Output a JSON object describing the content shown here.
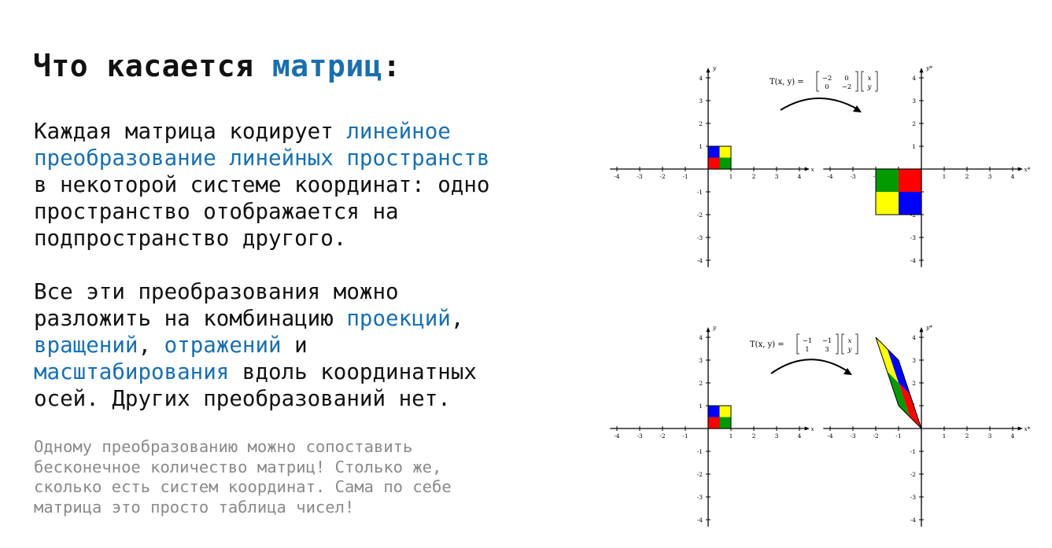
{
  "title": {
    "prefix": "Что касается ",
    "highlight": "матриц",
    "suffix": ":"
  },
  "paragraph1": {
    "part1": "Каждая матрица кодирует ",
    "link1": "линейное\nпреобразование линейных пространств",
    "part2": "\nв некоторой системе координат: одно\nпространство отображается на\nподпространство другого."
  },
  "paragraph2": {
    "part1": "Все эти преобразования можно\nразложить на комбинацию ",
    "link1": "проекций",
    "part2": ",\n",
    "link2": "вращений",
    "part3": ", ",
    "link3": "отражений",
    "part4": " и\n",
    "link4": "масштабирования",
    "part5": " вдоль координатных\nосей. Других преобразований нет."
  },
  "note": "Одному преобразованию можно сопоставить\nбесконечное количество матриц! Столько же,\nсколько есть систем координат. Сама по себе\nматрица это просто таблица чисел!",
  "figure": {
    "tick_labels": [
      "-4",
      "-3",
      "-2",
      "-1",
      "1",
      "2",
      "3",
      "4"
    ],
    "axis_x": "x",
    "axis_y": "y",
    "axis_x_prime": "x*",
    "axis_y_prime": "y*",
    "transform_label": "T(x, y) =",
    "vector": [
      "x",
      "y"
    ],
    "matrix_top": [
      [
        "−2",
        "0"
      ],
      [
        "0",
        "−2"
      ]
    ],
    "matrix_bottom": [
      [
        "−1",
        "−1"
      ],
      [
        "1",
        "3"
      ]
    ],
    "colors": {
      "blue": "#0000ff",
      "yellow": "#ffff00",
      "red": "#ff0000",
      "green": "#009900"
    }
  }
}
